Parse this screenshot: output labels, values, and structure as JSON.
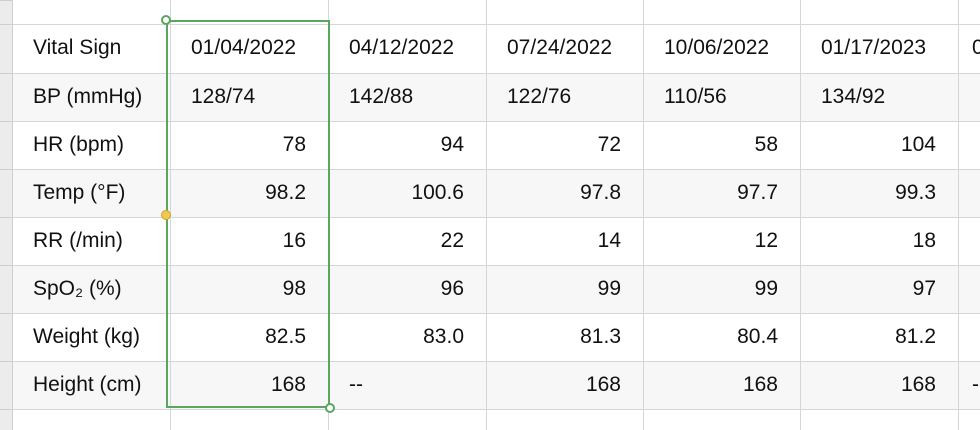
{
  "table": {
    "headers": [
      "Vital Sign",
      "01/04/2022",
      "04/12/2022",
      "07/24/2022",
      "10/06/2022",
      "01/17/2023"
    ],
    "header_overflow": "0",
    "rows": [
      {
        "label": "BP (mmHg)",
        "values": [
          "128/74",
          "142/88",
          "122/76",
          "110/56",
          "134/92"
        ],
        "overflow": ""
      },
      {
        "label": "HR (bpm)",
        "values": [
          "78",
          "94",
          "72",
          "58",
          "104"
        ],
        "overflow": ""
      },
      {
        "label": "Temp (°F)",
        "values": [
          "98.2",
          "100.6",
          "97.8",
          "97.7",
          "99.3"
        ],
        "overflow": ""
      },
      {
        "label": "RR (/min)",
        "values": [
          "16",
          "22",
          "14",
          "12",
          "18"
        ],
        "overflow": ""
      },
      {
        "label": "SpO₂ (%)",
        "values": [
          "98",
          "96",
          "99",
          "99",
          "97"
        ],
        "overflow": ""
      },
      {
        "label": "Weight (kg)",
        "values": [
          "82.5",
          "83.0",
          "81.3",
          "80.4",
          "81.2"
        ],
        "overflow": ""
      },
      {
        "label": "Height (cm)",
        "values": [
          "168",
          "--",
          "168",
          "168",
          "168"
        ],
        "overflow": "-"
      }
    ]
  },
  "selection": {
    "column": "01/04/2022",
    "color": "#5aa660",
    "handle_colors": [
      "#5aa660",
      "#f2c94c"
    ]
  },
  "colors": {
    "grid": "#d6d6d6",
    "alt_row": "#f7f7f7",
    "text": "#111111"
  }
}
